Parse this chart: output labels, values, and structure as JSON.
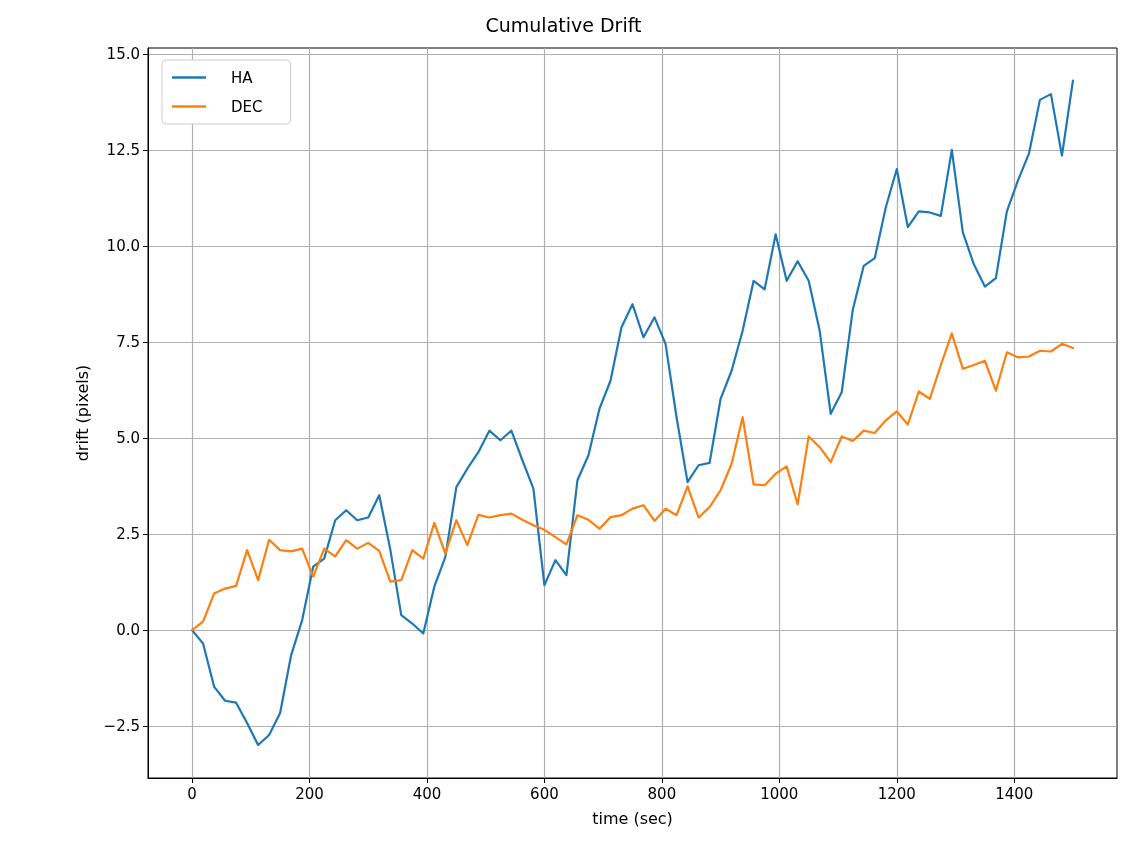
{
  "chart_data": {
    "type": "line",
    "title": "Cumulative Drift",
    "xlabel": "time (sec)",
    "ylabel": "drift (pixels)",
    "x": [
      0,
      18.75,
      37.5,
      56.25,
      75,
      93.75,
      112.5,
      131.25,
      150,
      168.75,
      187.5,
      206.25,
      225,
      243.75,
      262.5,
      281.25,
      300,
      318.75,
      337.5,
      356.25,
      375,
      393.75,
      412.5,
      431.25,
      450,
      468.75,
      487.5,
      506.25,
      525,
      543.75,
      562.5,
      581.25,
      600,
      618.75,
      637.5,
      656.25,
      675,
      693.75,
      712.5,
      731.25,
      750,
      768.75,
      787.5,
      806.25,
      825,
      843.75,
      862.5,
      881.25,
      900,
      918.75,
      937.5,
      956.25,
      975,
      993.75,
      1012.5,
      1031.25,
      1050,
      1068.75,
      1087.5,
      1106.25,
      1125,
      1143.75,
      1162.5,
      1181.25,
      1200,
      1218.75,
      1237.5,
      1256.25,
      1275,
      1293.75,
      1312.5,
      1331.25,
      1350,
      1368.75,
      1387.5,
      1406.25,
      1425,
      1443.75,
      1462.5,
      1481.25,
      1500
    ],
    "series": [
      {
        "name": "HA",
        "color": "#1f77b4",
        "values": [
          0,
          -0.35,
          -1.47,
          -1.84,
          -1.89,
          -2.42,
          -2.99,
          -2.73,
          -2.16,
          -0.65,
          0.26,
          1.65,
          1.86,
          2.86,
          3.12,
          2.86,
          2.93,
          3.51,
          2.1,
          0.39,
          0.17,
          -0.09,
          1.13,
          1.9,
          3.72,
          4.2,
          4.63,
          5.19,
          4.94,
          5.19,
          4.42,
          3.68,
          1.17,
          1.82,
          1.43,
          3.9,
          4.55,
          5.76,
          6.49,
          7.88,
          8.48,
          7.62,
          8.14,
          7.45,
          5.54,
          3.85,
          4.29,
          4.35,
          6.02,
          6.75,
          7.79,
          9.09,
          8.87,
          10.3,
          9.09,
          9.6,
          9.09,
          7.79,
          5.63,
          6.19,
          8.33,
          9.48,
          9.68,
          11.0,
          12.0,
          10.49,
          10.9,
          10.87,
          10.78,
          12.5,
          10.35,
          9.52,
          8.94,
          9.16,
          10.9,
          11.7,
          12.4,
          13.8,
          13.95,
          12.35,
          14.3
        ]
      },
      {
        "name": "DEC",
        "color": "#ff7f0e",
        "values": [
          0,
          0.22,
          0.95,
          1.08,
          1.15,
          2.08,
          1.3,
          2.35,
          2.08,
          2.05,
          2.12,
          1.39,
          2.12,
          1.92,
          2.34,
          2.12,
          2.27,
          2.06,
          1.26,
          1.3,
          2.08,
          1.86,
          2.79,
          1.99,
          2.86,
          2.21,
          3.0,
          2.93,
          2.99,
          3.03,
          2.87,
          2.73,
          2.61,
          2.42,
          2.23,
          2.99,
          2.87,
          2.64,
          2.94,
          2.99,
          3.16,
          3.25,
          2.84,
          3.16,
          2.99,
          3.74,
          2.93,
          3.2,
          3.64,
          4.33,
          5.54,
          3.79,
          3.77,
          4.07,
          4.26,
          3.27,
          5.04,
          4.76,
          4.37,
          5.04,
          4.92,
          5.19,
          5.13,
          5.46,
          5.69,
          5.35,
          6.21,
          6.02,
          6.9,
          7.72,
          6.8,
          6.9,
          7.01,
          6.23,
          7.23,
          7.1,
          7.12,
          7.27,
          7.25,
          7.45,
          7.34
        ]
      }
    ],
    "xlim": [
      -75,
      1575
    ],
    "xticks": [
      0,
      200,
      400,
      600,
      800,
      1000,
      1200,
      1400
    ],
    "ylim": [
      -3.85,
      15.15
    ],
    "yticks": [
      {
        "value": -2.5,
        "label": "−2.5"
      },
      {
        "value": 0,
        "label": "0.0"
      },
      {
        "value": 2.5,
        "label": "2.5"
      },
      {
        "value": 5,
        "label": "5.0"
      },
      {
        "value": 7.5,
        "label": "7.5"
      },
      {
        "value": 10,
        "label": "10.0"
      },
      {
        "value": 12.5,
        "label": "12.5"
      },
      {
        "value": 15,
        "label": "15.0"
      }
    ],
    "grid": true,
    "legend": "top left",
    "marker": "none",
    "line_style": "solid"
  }
}
